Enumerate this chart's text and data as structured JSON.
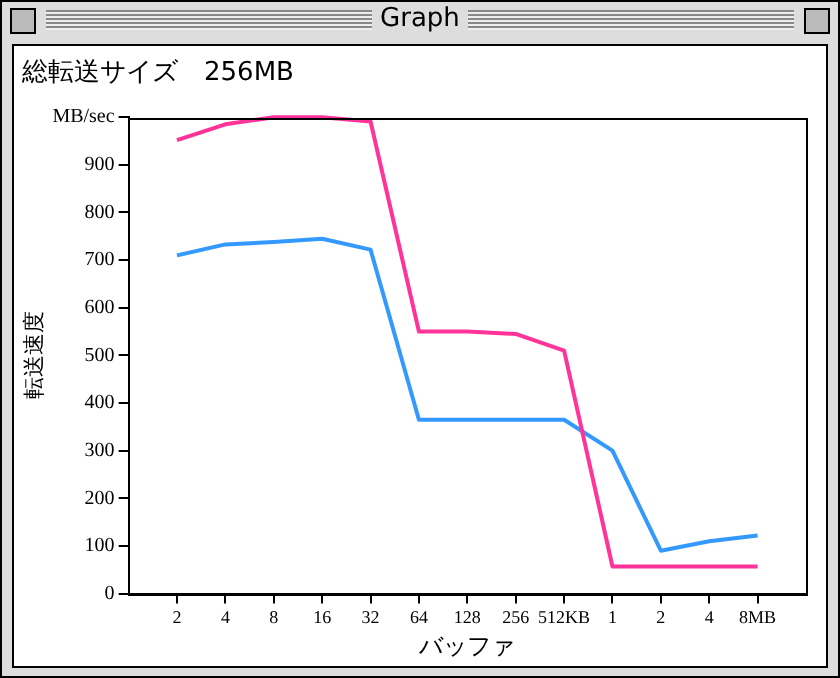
{
  "chart_data": {
    "type": "line",
    "title": "総転送サイズ　256MB",
    "xlabel": "バッファ",
    "ylabel": "転送速度",
    "annotations": [
      "Graph"
    ],
    "categories": [
      "2",
      "4",
      "8",
      "16",
      "32",
      "64",
      "128",
      "256",
      "512KB",
      "1",
      "2",
      "4",
      "8MB"
    ],
    "series": [
      {
        "color": "#ff3399",
        "values": [
          952,
          985,
          1000,
          1000,
          991,
          550,
          550,
          545,
          510,
          57,
          57,
          57,
          57
        ]
      },
      {
        "color": "#3399ff",
        "values": [
          710,
          733,
          738,
          745,
          722,
          365,
          365,
          365,
          365,
          300,
          90,
          110,
          122
        ]
      }
    ],
    "ylim": [
      0,
      1000
    ],
    "yticks": [
      0,
      100,
      200,
      300,
      400,
      500,
      600,
      700,
      800,
      900,
      {
        "value": 1000,
        "label": "MB/sec"
      }
    ],
    "grid": false,
    "legend": false,
    "marker": "none",
    "line_style": "solid"
  }
}
